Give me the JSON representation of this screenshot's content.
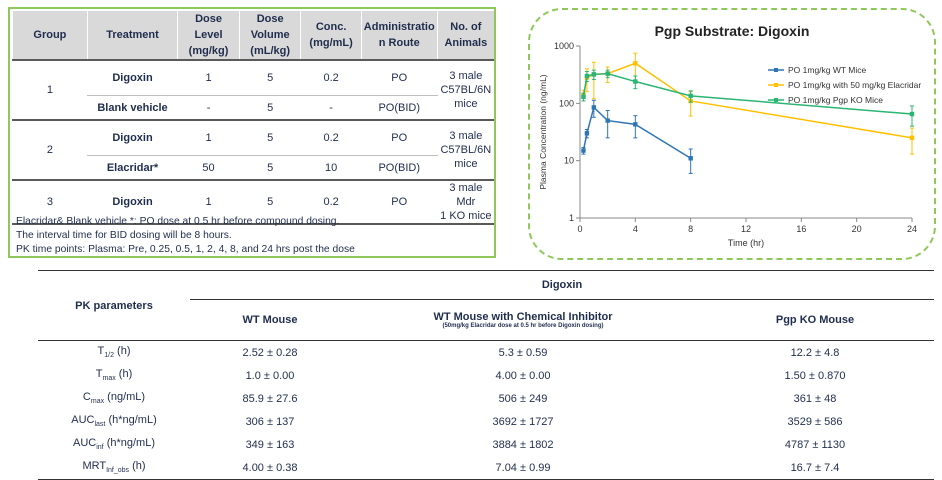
{
  "design": {
    "headers": [
      "Group",
      "Treatment",
      "Dose Level\n(mg/kg)",
      "Dose Volume\n(mL/kg)",
      "Conc.\n(mg/mL)",
      "Administration Route",
      "No. of\nAnimals"
    ],
    "h_group": "Group",
    "h_treatment": "Treatment",
    "h_dose1": "Dose Level",
    "h_dose2": "(mg/kg)",
    "h_vol1": "Dose Volume",
    "h_vol2": "(mL/kg)",
    "h_conc1": "Conc.",
    "h_conc2": "(mg/mL)",
    "h_route1": "Administratio",
    "h_route2": "n Route",
    "h_anim1": "No. of",
    "h_anim2": "Animals",
    "rows": [
      {
        "group": "1",
        "treatment": "Digoxin",
        "dose": "1",
        "volume": "5",
        "conc": "0.2",
        "route": "PO",
        "animals": "3 male C57BL/6N mice"
      },
      {
        "treatment": "Blank vehicle",
        "dose": "-",
        "volume": "5",
        "conc": "-",
        "route": "PO(BID)"
      },
      {
        "group": "2",
        "treatment": "Digoxin",
        "dose": "1",
        "volume": "5",
        "conc": "0.2",
        "route": "PO",
        "animals": "3 male C57BL/6N mice"
      },
      {
        "treatment": "Elacridar*",
        "dose": "50",
        "volume": "5",
        "conc": "10",
        "route": "PO(BID)"
      },
      {
        "group": "3",
        "treatment": "Digoxin",
        "dose": "1",
        "volume": "5",
        "conc": "0.2",
        "route": "PO",
        "animals": "3 male Mdr 1 KO mice"
      }
    ],
    "animals1a": "3 male",
    "animals1b": "C57BL/6N",
    "animals1c": "mice",
    "animals3a": "3 male Mdr",
    "animals3b": "1 KO mice",
    "note1": "Elacridar& Blank vehicle *: PO dose at 0.5 hr before compound dosing.",
    "note2": "The interval time for BID dosing will be 8 hours.",
    "note3": "PK time points: Plasma: Pre, 0.25, 0.5, 1, 2, 4, 8, and 24 hrs post the dose"
  },
  "chart_data": {
    "type": "line",
    "title": "Pgp Substrate: Digoxin",
    "xlabel": "Time (hr)",
    "ylabel": "Plasma Concentration (ng/mL)",
    "xlim": [
      0,
      24
    ],
    "xticks": [
      0,
      4,
      8,
      12,
      16,
      20,
      24
    ],
    "yscale": "log",
    "ylim": [
      1,
      1000
    ],
    "yticks": [
      1,
      10,
      100,
      1000
    ],
    "legend_position": "top-right",
    "series": [
      {
        "name": "PO 1mg/kg WT Mice",
        "color": "#2e75b6",
        "x": [
          0.25,
          0.5,
          1,
          2,
          4,
          8
        ],
        "y": [
          15,
          30,
          85,
          50,
          43,
          11
        ],
        "err": [
          2,
          5,
          28,
          25,
          18,
          5
        ]
      },
      {
        "name": "PO 1mg/kg with 50 mg/kg Elacridar",
        "color": "#ffc000",
        "x": [
          0.25,
          0.5,
          1,
          2,
          4,
          8,
          24
        ],
        "y": [
          140,
          280,
          320,
          330,
          500,
          110,
          25
        ],
        "err": [
          30,
          120,
          200,
          100,
          250,
          50,
          12
        ]
      },
      {
        "name": "PO 1mg/kg Pgp KO Mice",
        "color": "#2bb573",
        "x": [
          0.25,
          0.5,
          1,
          2,
          4,
          8,
          24
        ],
        "y": [
          130,
          300,
          320,
          330,
          240,
          135,
          65
        ],
        "err": [
          20,
          60,
          60,
          50,
          60,
          30,
          25
        ]
      }
    ]
  },
  "pk": {
    "param_header": "PK parameters",
    "group_header": "Digoxin",
    "col_wt": "WT Mouse",
    "col_inh": "WT Mouse with Chemical Inhibitor",
    "col_inh_note": "(50mg/kg Elacridar dose at 0.5 hr before Digoxin dosing)",
    "col_ko": "Pgp KO Mouse",
    "rows": [
      {
        "p": "T",
        "sub": "1/2",
        "unit": " (h)",
        "wt": "2.52 ± 0.28",
        "inh": "5.3 ± 0.59",
        "ko": "12.2 ± 4.8"
      },
      {
        "p": "T",
        "sub": "max",
        "unit": " (h)",
        "wt": "1.0 ± 0.00",
        "inh": "4.00 ± 0.00",
        "ko": "1.50 ± 0.870"
      },
      {
        "p": "C",
        "sub": "max",
        "unit": " (ng/mL)",
        "wt": "85.9 ± 27.6",
        "inh": "506 ± 249",
        "ko": "361 ± 48"
      },
      {
        "p": "AUC",
        "sub": "last",
        "unit": " (h*ng/mL)",
        "wt": "306 ± 137",
        "inh": "3692 ± 1727",
        "ko": "3529 ± 586"
      },
      {
        "p": "AUC",
        "sub": "inf",
        "unit": " (h*ng/mL)",
        "wt": "349 ± 163",
        "inh": "3884 ± 1802",
        "ko": "4787 ± 1130"
      },
      {
        "p": "MRT",
        "sub": "Inf_obs",
        "unit": " (h)",
        "wt": "4.00 ± 0.38",
        "inh": "7.04 ± 0.99",
        "ko": "16.7 ± 7.4"
      }
    ]
  }
}
